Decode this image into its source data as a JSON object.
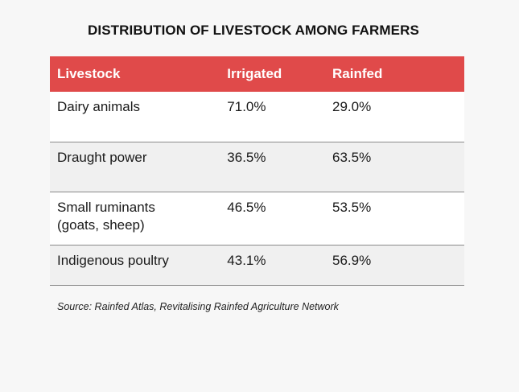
{
  "chart_data": {
    "type": "table",
    "title": "DISTRIBUTION OF LIVESTOCK AMONG FARMERS",
    "columns": [
      "Livestock",
      "Irrigated",
      "Rainfed"
    ],
    "rows": [
      {
        "label": "Dairy animals",
        "irrigated": "71.0%",
        "rainfed": "29.0%"
      },
      {
        "label": "Draught power",
        "irrigated": "36.5%",
        "rainfed": "63.5%"
      },
      {
        "label": "Small ruminants\n(goats, sheep)",
        "irrigated": "46.5%",
        "rainfed": "53.5%"
      },
      {
        "label": "Indigenous poultry",
        "irrigated": "43.1%",
        "rainfed": "56.9%"
      }
    ],
    "source": "Source: Rainfed Atlas, Revitalising Rainfed Agriculture Network",
    "header_color": "#e04a4a"
  }
}
